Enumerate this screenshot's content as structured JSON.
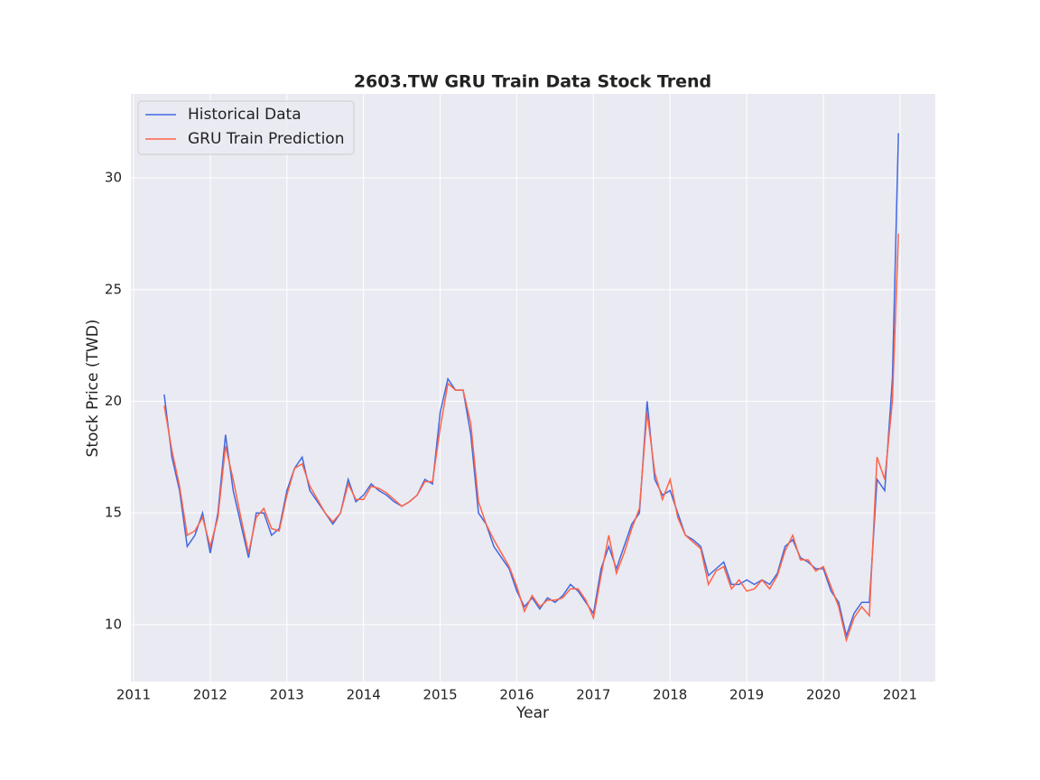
{
  "chart_data": {
    "type": "line",
    "title": "2603.TW  GRU Train Data Stock Trend",
    "xlabel": "Year",
    "ylabel": "Stock Price (TWD)",
    "x": [
      2011.4,
      2011.5,
      2011.6,
      2011.7,
      2011.8,
      2011.9,
      2012.0,
      2012.1,
      2012.2,
      2012.3,
      2012.4,
      2012.5,
      2012.6,
      2012.7,
      2012.8,
      2012.9,
      2013.0,
      2013.1,
      2013.2,
      2013.3,
      2013.4,
      2013.5,
      2013.6,
      2013.7,
      2013.8,
      2013.9,
      2014.0,
      2014.1,
      2014.2,
      2014.3,
      2014.4,
      2014.5,
      2014.6,
      2014.7,
      2014.8,
      2014.9,
      2015.0,
      2015.1,
      2015.2,
      2015.3,
      2015.4,
      2015.5,
      2015.6,
      2015.7,
      2015.8,
      2015.9,
      2016.0,
      2016.1,
      2016.2,
      2016.3,
      2016.4,
      2016.5,
      2016.6,
      2016.7,
      2016.8,
      2016.9,
      2017.0,
      2017.1,
      2017.2,
      2017.3,
      2017.4,
      2017.5,
      2017.6,
      2017.7,
      2017.8,
      2017.9,
      2018.0,
      2018.1,
      2018.2,
      2018.3,
      2018.4,
      2018.5,
      2018.6,
      2018.7,
      2018.8,
      2018.9,
      2019.0,
      2019.1,
      2019.2,
      2019.3,
      2019.4,
      2019.5,
      2019.6,
      2019.7,
      2019.8,
      2019.9,
      2020.0,
      2020.1,
      2020.2,
      2020.3,
      2020.4,
      2020.5,
      2020.6,
      2020.7,
      2020.8,
      2020.9,
      2020.98
    ],
    "series": [
      {
        "name": "Historical Data",
        "color": "#4169e1",
        "values": [
          20.3,
          17.5,
          16.0,
          13.5,
          14.0,
          15.0,
          13.2,
          15.0,
          18.5,
          16.0,
          14.5,
          13.0,
          15.0,
          15.0,
          14.0,
          14.3,
          16.0,
          17.0,
          17.5,
          16.0,
          15.5,
          15.0,
          14.5,
          15.0,
          16.5,
          15.5,
          15.8,
          16.3,
          16.0,
          15.8,
          15.5,
          15.3,
          15.5,
          15.8,
          16.5,
          16.3,
          19.5,
          21.0,
          20.5,
          20.5,
          18.5,
          15.0,
          14.5,
          13.5,
          13.0,
          12.5,
          11.5,
          10.8,
          11.2,
          10.7,
          11.2,
          11.0,
          11.3,
          11.8,
          11.5,
          11.0,
          10.5,
          12.5,
          13.5,
          12.5,
          13.5,
          14.5,
          15.0,
          20.0,
          16.5,
          15.8,
          16.0,
          15.0,
          14.0,
          13.8,
          13.5,
          12.2,
          12.5,
          12.8,
          11.8,
          11.8,
          12.0,
          11.8,
          12.0,
          11.8,
          12.3,
          13.5,
          13.8,
          13.0,
          12.8,
          12.5,
          12.5,
          11.5,
          11.0,
          9.5,
          10.5,
          11.0,
          11.0,
          16.5,
          16.0,
          21.0,
          32.0
        ]
      },
      {
        "name": "GRU Train Prediction",
        "color": "#ff6347",
        "values": [
          19.8,
          17.8,
          16.2,
          14.0,
          14.2,
          14.8,
          13.5,
          14.8,
          18.0,
          16.5,
          14.8,
          13.2,
          14.8,
          15.2,
          14.3,
          14.2,
          15.8,
          17.0,
          17.2,
          16.2,
          15.6,
          15.0,
          14.6,
          15.0,
          16.3,
          15.6,
          15.6,
          16.2,
          16.1,
          15.9,
          15.6,
          15.3,
          15.5,
          15.8,
          16.4,
          16.4,
          18.8,
          20.8,
          20.5,
          20.5,
          19.0,
          15.5,
          14.5,
          13.8,
          13.2,
          12.6,
          11.7,
          10.6,
          11.3,
          10.8,
          11.1,
          11.1,
          11.2,
          11.6,
          11.6,
          11.1,
          10.3,
          12.2,
          14.0,
          12.3,
          13.2,
          14.3,
          15.2,
          19.5,
          16.8,
          15.6,
          16.5,
          14.8,
          14.0,
          13.7,
          13.4,
          11.8,
          12.4,
          12.6,
          11.6,
          12.0,
          11.5,
          11.6,
          12.0,
          11.6,
          12.2,
          13.3,
          14.0,
          12.9,
          12.9,
          12.4,
          12.6,
          11.7,
          10.8,
          9.3,
          10.3,
          10.8,
          10.4,
          17.5,
          16.5,
          20.0,
          27.5
        ]
      }
    ],
    "xlim": [
      2010.965,
      2021.46
    ],
    "ylim": [
      7.45,
      33.76
    ],
    "xticks": [
      2011,
      2012,
      2013,
      2014,
      2015,
      2016,
      2017,
      2018,
      2019,
      2020,
      2021
    ],
    "yticks": [
      10,
      15,
      20,
      25,
      30
    ],
    "grid": true,
    "legend": "upper left"
  }
}
